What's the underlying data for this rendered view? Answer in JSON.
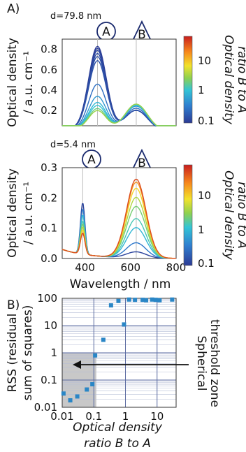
{
  "colors": {
    "spectrum_low": "#1f2e8c",
    "spectrum_high": "#c81e1e",
    "rss_markers": "#2a86c6",
    "threshold_zone": "#c8c8c8",
    "frame": "#333333",
    "grid": "#9aa6c8"
  },
  "chart_data": [
    {
      "panel_label": "A)",
      "type": "line",
      "annotation_d": "d=79.8 nm",
      "marker_A": "A",
      "marker_B": "B",
      "x_label": "",
      "y_label_line1": "Optical density",
      "y_label_line2": "/ a.u. cm⁻¹",
      "xlim": [
        300,
        800
      ],
      "ylim": [
        0.05,
        0.9
      ],
      "y_ticks": [
        "0.8",
        "0.6",
        "0.4",
        "0.2"
      ],
      "y_tick_values": [
        0.8,
        0.6,
        0.4,
        0.2
      ],
      "reference_lines_nm": [
        455,
        625
      ],
      "colorbar": {
        "title_line1": "Optical density",
        "title_line2": "ratio B to A",
        "scale": "log",
        "range": [
          0.1,
          40
        ],
        "ticks": [
          "10",
          "1",
          "0.1"
        ],
        "tick_values": [
          10,
          1,
          0.1
        ]
      },
      "series_shape": {
        "peakA_nm": 455,
        "widthA_nm": 55,
        "peakB_nm": 625,
        "widthB_nm": 70
      },
      "series": [
        {
          "peakA": 0.82,
          "peakB": 0.2,
          "ratio": 0.1
        },
        {
          "peakA": 0.8,
          "peakB": 0.2,
          "ratio": 0.11
        },
        {
          "peakA": 0.78,
          "peakB": 0.2,
          "ratio": 0.12
        },
        {
          "peakA": 0.75,
          "peakB": 0.2,
          "ratio": 0.13
        },
        {
          "peakA": 0.72,
          "peakB": 0.2,
          "ratio": 0.14
        },
        {
          "peakA": 0.68,
          "peakB": 0.2,
          "ratio": 0.15
        },
        {
          "peakA": 0.45,
          "peakB": 0.22,
          "ratio": 0.25
        },
        {
          "peakA": 0.33,
          "peakB": 0.24,
          "ratio": 0.5
        },
        {
          "peakA": 0.27,
          "peakB": 0.25,
          "ratio": 0.8
        },
        {
          "peakA": 0.24,
          "peakB": 0.25,
          "ratio": 1.0
        },
        {
          "peakA": 0.21,
          "peakB": 0.26,
          "ratio": 1.6
        },
        {
          "peakA": 0.19,
          "peakB": 0.26,
          "ratio": 2.5
        }
      ]
    },
    {
      "type": "line",
      "annotation_d": "d=5.4 nm",
      "marker_A": "A",
      "marker_B": "B",
      "x_label": "Wavelength / nm",
      "x_ticks": [
        "400",
        "600",
        "800"
      ],
      "x_tick_values": [
        400,
        600,
        800
      ],
      "y_label_line1": "Optical density",
      "y_label_line2": "/ a.u. cm⁻¹",
      "xlim": [
        300,
        800
      ],
      "ylim": [
        0,
        0.3
      ],
      "y_ticks": [
        "0.3",
        "0.2",
        "0.1",
        "0.0"
      ],
      "y_tick_values": [
        0.3,
        0.2,
        0.1,
        0.0
      ],
      "reference_lines_nm": [
        390,
        625
      ],
      "colorbar": {
        "title_line1": "Optical density",
        "title_line2": "ratio B to A",
        "scale": "log",
        "range": [
          0.1,
          40
        ],
        "ticks": [
          "10",
          "1",
          "0.1"
        ],
        "tick_values": [
          10,
          1,
          0.1
        ]
      },
      "series_shape": {
        "peakA_nm": 390,
        "widthA_nm": 14,
        "peakB_nm": 625,
        "widthB_nm": 60
      },
      "series": [
        {
          "peakA": 0.17,
          "peakB": 0.02,
          "ratio": 0.12
        },
        {
          "peakA": 0.15,
          "peakB": 0.05,
          "ratio": 0.3
        },
        {
          "peakA": 0.13,
          "peakB": 0.1,
          "ratio": 0.8
        },
        {
          "peakA": 0.11,
          "peakB": 0.13,
          "ratio": 1.2
        },
        {
          "peakA": 0.1,
          "peakB": 0.17,
          "ratio": 1.8
        },
        {
          "peakA": 0.09,
          "peakB": 0.2,
          "ratio": 3
        },
        {
          "peakA": 0.08,
          "peakB": 0.23,
          "ratio": 6
        },
        {
          "peakA": 0.07,
          "peakB": 0.25,
          "ratio": 12
        },
        {
          "peakA": 0.07,
          "peakB": 0.26,
          "ratio": 25
        }
      ]
    },
    {
      "panel_label": "B)",
      "type": "scatter",
      "x_scale": "log",
      "y_scale": "log",
      "xlim": [
        0.01,
        40
      ],
      "ylim": [
        0.01,
        100
      ],
      "x_ticks": [
        "0.01",
        "0.1",
        "1",
        "10"
      ],
      "x_tick_values": [
        0.01,
        0.1,
        1,
        10
      ],
      "y_ticks": [
        "100",
        "10",
        "1",
        "0.1",
        "0.01"
      ],
      "y_tick_values": [
        100,
        10,
        1,
        0.1,
        0.01
      ],
      "x_label_line1": "Optical density",
      "x_label_line2": "ratio B to A",
      "y_label_line1": "RSS (residual",
      "y_label_line2": "sum of squares)",
      "threshold_zone": {
        "x": [
          0.01,
          0.12
        ],
        "y": [
          0.01,
          1
        ]
      },
      "annotation_line1": "Spherical",
      "annotation_line2": "threshold zone",
      "points": [
        {
          "x": 0.011,
          "y": 0.032
        },
        {
          "x": 0.018,
          "y": 0.018
        },
        {
          "x": 0.03,
          "y": 0.025
        },
        {
          "x": 0.06,
          "y": 0.045
        },
        {
          "x": 0.09,
          "y": 0.07
        },
        {
          "x": 0.11,
          "y": 0.8
        },
        {
          "x": 0.2,
          "y": 3
        },
        {
          "x": 0.35,
          "y": 55
        },
        {
          "x": 0.6,
          "y": 80
        },
        {
          "x": 0.9,
          "y": 11
        },
        {
          "x": 1.3,
          "y": 90
        },
        {
          "x": 2.0,
          "y": 88
        },
        {
          "x": 3.5,
          "y": 88
        },
        {
          "x": 4.5,
          "y": 85
        },
        {
          "x": 7.0,
          "y": 90
        },
        {
          "x": 9.0,
          "y": 88
        },
        {
          "x": 12,
          "y": 85
        },
        {
          "x": 30,
          "y": 90
        }
      ]
    }
  ]
}
